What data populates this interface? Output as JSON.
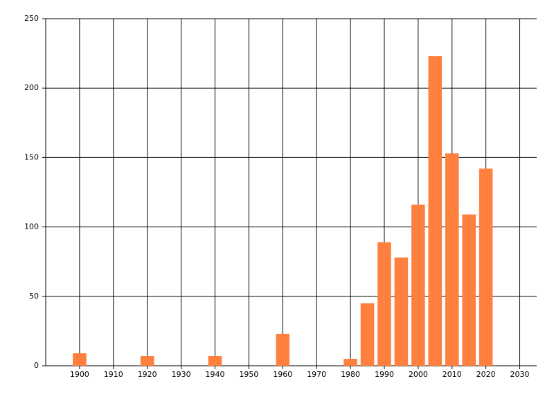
{
  "chart_data": {
    "type": "bar",
    "x": [
      1900,
      1920,
      1940,
      1960,
      1980,
      1985,
      1990,
      1995,
      2000,
      2005,
      2010,
      2015,
      2020
    ],
    "values": [
      9,
      7,
      7,
      23,
      5,
      45,
      89,
      78,
      116,
      223,
      153,
      109,
      142
    ],
    "color": "#ff7f3f",
    "xlim": [
      1890,
      2035
    ],
    "xticks": [
      1900,
      1910,
      1920,
      1930,
      1940,
      1950,
      1960,
      1970,
      1980,
      1990,
      2000,
      2010,
      2020,
      2030
    ],
    "ylim": [
      0,
      250
    ],
    "yticks": [
      0,
      50,
      100,
      150,
      200,
      250
    ],
    "grid": true
  }
}
